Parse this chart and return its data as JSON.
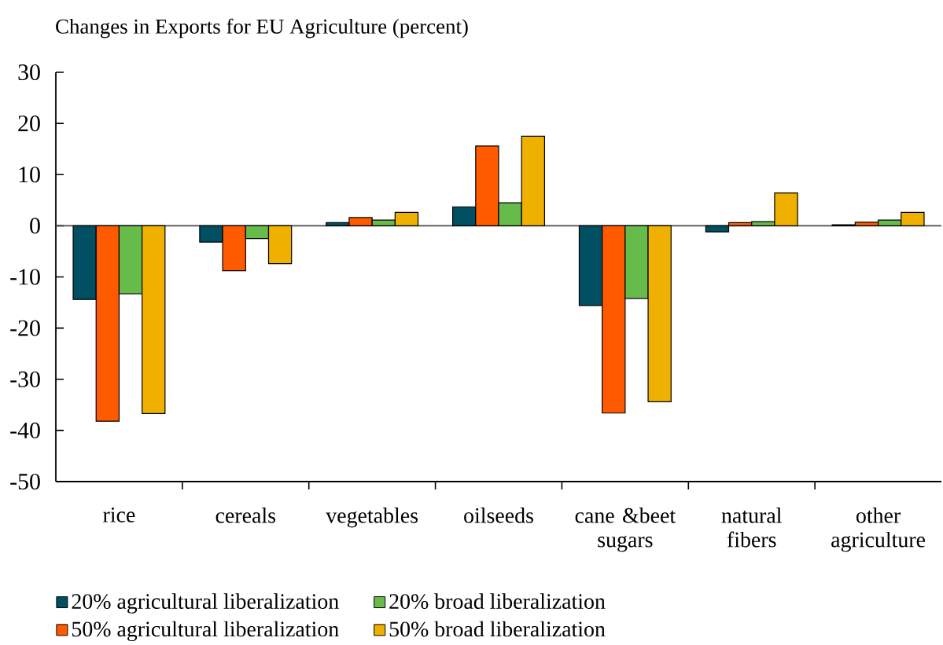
{
  "chart_data": {
    "type": "bar",
    "title": "Changes in Exports for EU Agriculture (percent)",
    "categories": [
      "rice",
      "cereals",
      "vegetables",
      "oilseeds",
      "cane &beet sugars",
      "natural fibers",
      "other agriculture"
    ],
    "series": [
      {
        "name": "20% agricultural liberalization",
        "color": "#004f63",
        "values": [
          -14.4,
          -3.2,
          0.6,
          3.7,
          -15.6,
          -1.2,
          0.2
        ]
      },
      {
        "name": "50% agricultural liberalization",
        "color": "#ff5a00",
        "values": [
          -38.2,
          -8.8,
          1.6,
          15.6,
          -36.6,
          0.6,
          0.7
        ]
      },
      {
        "name": "20% broad liberalization",
        "color": "#66bb4a",
        "values": [
          -13.3,
          -2.5,
          1.1,
          4.5,
          -14.2,
          0.8,
          1.1
        ]
      },
      {
        "name": "50% broad liberalization",
        "color": "#f0b000",
        "values": [
          -36.7,
          -7.4,
          2.6,
          17.5,
          -34.4,
          6.4,
          2.6
        ]
      }
    ],
    "ylim": [
      -50,
      30
    ],
    "yticks": [
      -50,
      -40,
      -30,
      -20,
      -10,
      0,
      10,
      20,
      30
    ],
    "legend": "bottom left"
  }
}
